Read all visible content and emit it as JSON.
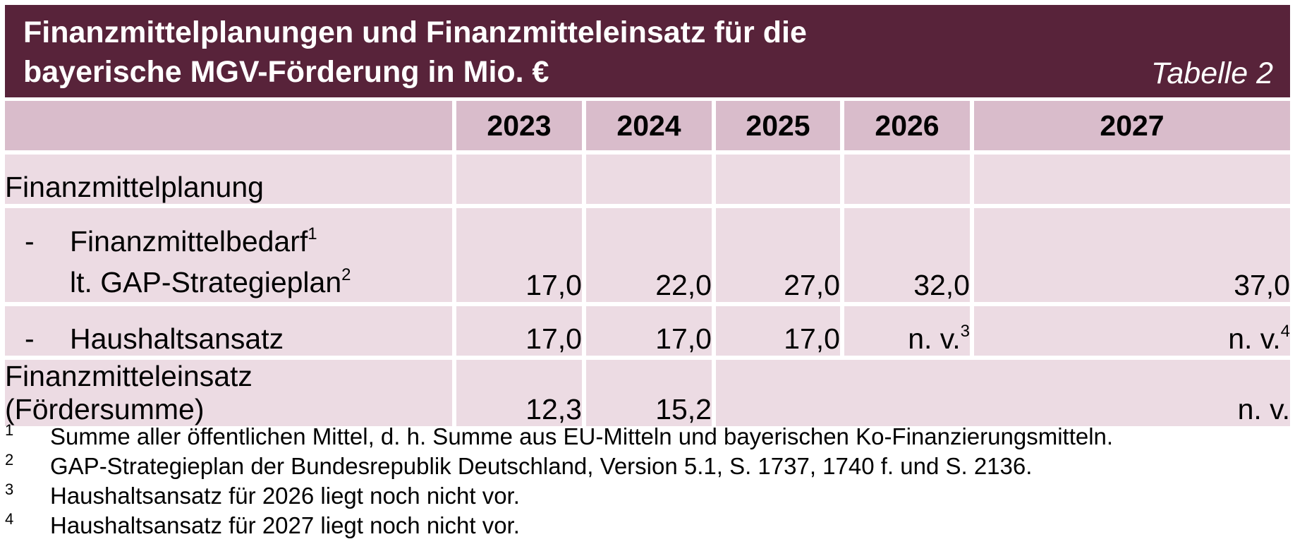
{
  "header": {
    "title_line1": "Finanzmittelplanungen und Finanzmitteleinsatz für die",
    "title_line2": "bayerische MGV-Förderung in Mio. €",
    "table_label": "Tabelle 2"
  },
  "table": {
    "years": [
      "2023",
      "2024",
      "2025",
      "2026",
      "2027"
    ],
    "section_title": "Finanzmittelplanung",
    "bedarf": {
      "dash": "-",
      "label_line1": "Finanzmittelbedarf",
      "label_line1_sup": "1",
      "label_line2": "lt. GAP-Strategieplan",
      "label_line2_sup": "2",
      "values": [
        "17,0",
        "22,0",
        "27,0",
        "32,0",
        "37,0"
      ]
    },
    "haushalt": {
      "dash": "-",
      "label": "Haushaltsansatz",
      "values": [
        "17,0",
        "17,0",
        "17,0",
        "n. v.",
        "n. v."
      ],
      "sups": [
        "",
        "",
        "",
        "3",
        "4"
      ]
    },
    "einsatz": {
      "label": "Finanzmitteleinsatz (Fördersumme)",
      "values": [
        "12,3",
        "15,2"
      ],
      "merged_value": "n. v."
    }
  },
  "footnotes": [
    {
      "num": "1",
      "text": "Summe aller öffentlichen Mittel, d. h. Summe aus EU-Mitteln und bayerischen Ko-Finanzierungsmitteln."
    },
    {
      "num": "2",
      "text": "GAP-Strategieplan der Bundesrepublik Deutschland, Version 5.1, S. 1737, 1740 f. und S. 2136."
    },
    {
      "num": "3",
      "text": "Haushaltsansatz für 2026 liegt noch nicht vor."
    },
    {
      "num": "4",
      "text": "Haushaltsansatz für 2027 liegt noch nicht vor."
    }
  ]
}
